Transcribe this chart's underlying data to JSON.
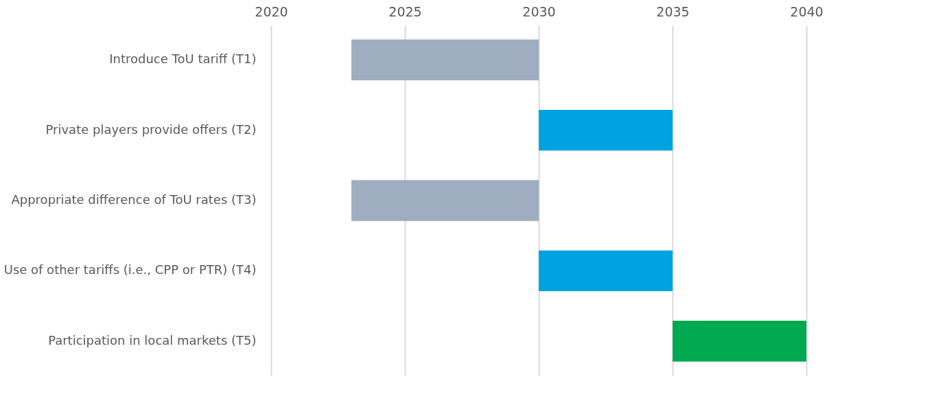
{
  "chart_data": {
    "type": "bar",
    "orientation": "horizontal",
    "categories": [
      "Introduce ToU tariff (T1)",
      "Private players provide offers (T2)",
      "Appropriate difference of ToU rates (T3)",
      "Use of other tariffs (i.e., CPP or PTR) (T4)",
      "Participation in local markets (T5)"
    ],
    "base": [
      2023,
      2030,
      2023,
      2030,
      2035
    ],
    "values": [
      7,
      5,
      7,
      5,
      5
    ],
    "colors": [
      "#9eadbf",
      "#00a3e0",
      "#9eadbf",
      "#00a3e0",
      "#00a94f"
    ],
    "xlim": [
      2020,
      2040
    ],
    "xticks": [
      2020,
      2025,
      2030,
      2035,
      2040
    ],
    "grid": "x"
  }
}
